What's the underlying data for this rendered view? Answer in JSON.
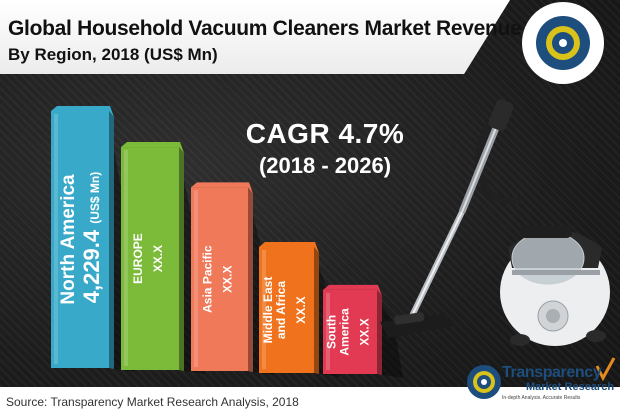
{
  "header": {
    "title": "Global Household Vacuum Cleaners Market Revenue",
    "subtitle": "By Region, 2018 (US$ Mn)"
  },
  "cagr": {
    "label": "CAGR 4.7%",
    "period": "(2018 - 2026)"
  },
  "chart_data": {
    "type": "bar",
    "categories": [
      "North America",
      "EUROPE",
      "Asia Pacific",
      "Middle East and Africa",
      "South America"
    ],
    "values": [
      4229.4,
      null,
      null,
      null,
      null
    ],
    "bar_labels": [
      {
        "name_lines": [
          "North America"
        ],
        "value": "4,229.4",
        "unit": "(US$ Mn)"
      },
      {
        "name_lines": [
          "EUROPE"
        ],
        "value": "XX.X"
      },
      {
        "name_lines": [
          "Asia Pacific"
        ],
        "value": "XX.X"
      },
      {
        "name_lines": [
          "Middle East",
          "and Africa"
        ],
        "value": "XX.X"
      },
      {
        "name_lines": [
          "South",
          "America"
        ],
        "value": "XX.X"
      }
    ],
    "relative_heights": [
      1.0,
      0.87,
      0.72,
      0.5,
      0.34
    ],
    "colors": [
      "#38a9c9",
      "#7cbb3a",
      "#f0795a",
      "#f0721c",
      "#e23a52"
    ]
  },
  "source": "Source: Transparency Market Research Analysis, 2018",
  "brand": {
    "name": "Transparency",
    "sub": "Market Research",
    "tagline": "In-depth Analysis. Accurate Results"
  },
  "image": {
    "name": "vacuum-cleaner-image"
  }
}
